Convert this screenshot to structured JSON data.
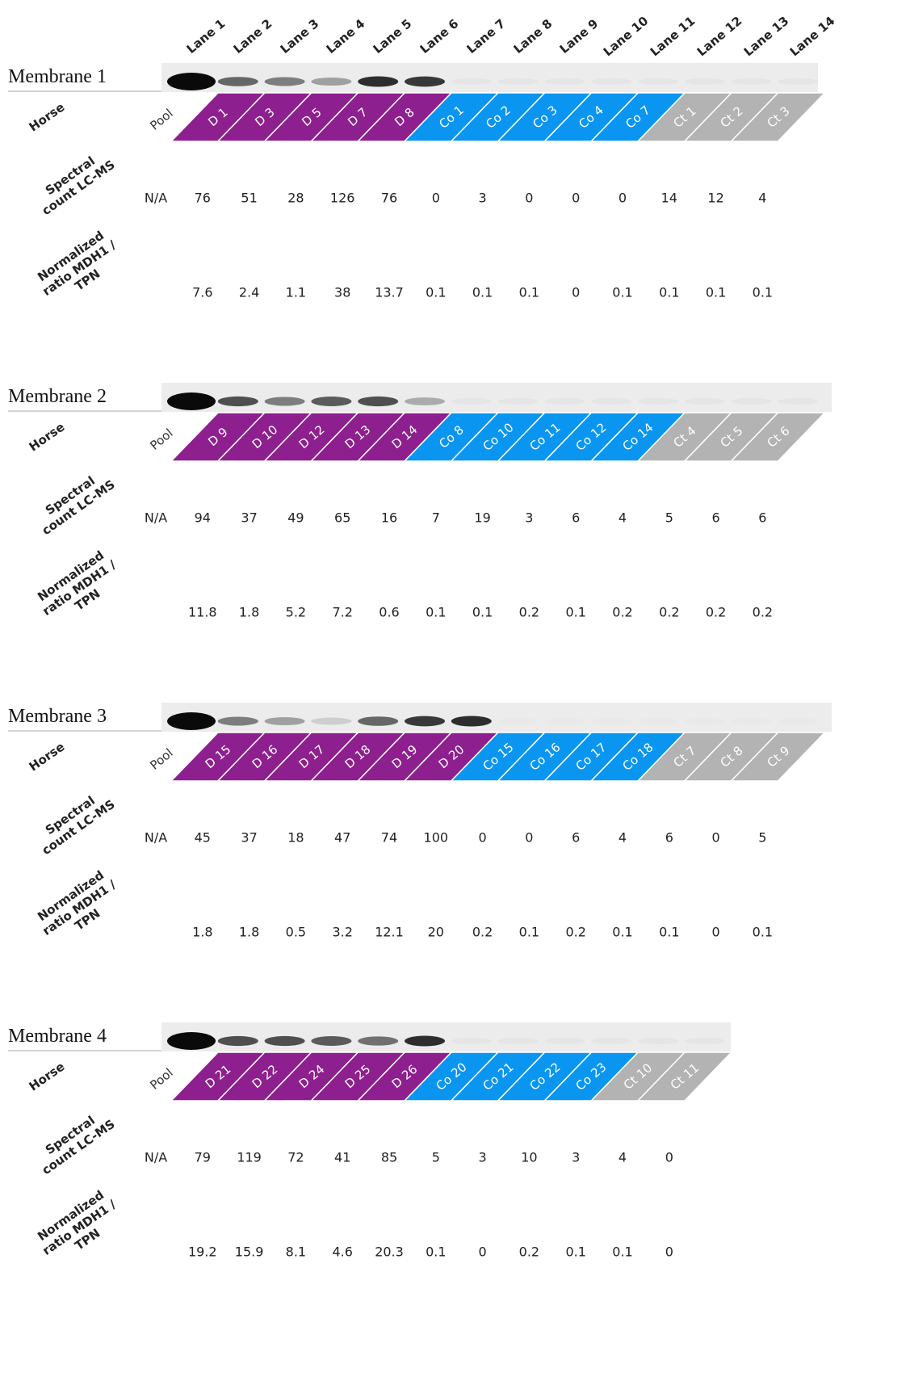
{
  "lanes": [
    "Lane 1",
    "Lane 2",
    "Lane 3",
    "Lane 4",
    "Lane 5",
    "Lane 6",
    "Lane 7",
    "Lane 8",
    "Lane 9",
    "Lane 10",
    "Lane 11",
    "Lane 12",
    "Lane 13",
    "Lane 14"
  ],
  "row_labels": {
    "horse": "Horse",
    "spectral": "Spectral count LC-MS",
    "normalized": "Normalized ratio MDH1 / TPN"
  },
  "membranes": [
    {
      "title": "Membrane 1",
      "horse": [
        "Pool",
        "D 1",
        "D 3",
        "D 5",
        "D 7",
        "D 8",
        "Co 1",
        "Co 2",
        "Co 3",
        "Co 4",
        "Co 7",
        "Ct 1",
        "Ct 2",
        "Ct 3"
      ],
      "horse_colors": [
        "#ffffff",
        "#8e1f8e",
        "#8e1f8e",
        "#8e1f8e",
        "#8e1f8e",
        "#8e1f8e",
        "#0a96f0",
        "#0a96f0",
        "#0a96f0",
        "#0a96f0",
        "#0a96f0",
        "#b3b3b3",
        "#b3b3b3",
        "#b3b3b3"
      ],
      "spectral_count": [
        "N/A",
        76,
        51,
        28,
        126,
        76,
        0,
        3,
        0,
        0,
        0,
        14,
        12,
        4
      ],
      "normalized_ratio": [
        null,
        7.6,
        2.4,
        1.1,
        38,
        13.7,
        0.1,
        0.1,
        0.1,
        0,
        0.1,
        0.1,
        0.1,
        0.1
      ]
    },
    {
      "title": "Membrane 2",
      "horse": [
        "Pool",
        "D 9",
        "D 10",
        "D 12",
        "D 13",
        "D 14",
        "Co 8",
        "Co 10",
        "Co 11",
        "Co 12",
        "Co 14",
        "Ct 4",
        "Ct 5",
        "Ct 6"
      ],
      "horse_colors": [
        "#ffffff",
        "#8e1f8e",
        "#8e1f8e",
        "#8e1f8e",
        "#8e1f8e",
        "#8e1f8e",
        "#0a96f0",
        "#0a96f0",
        "#0a96f0",
        "#0a96f0",
        "#0a96f0",
        "#b3b3b3",
        "#b3b3b3",
        "#b3b3b3"
      ],
      "spectral_count": [
        "N/A",
        94,
        37,
        49,
        65,
        16,
        7,
        19,
        3,
        6,
        4,
        5,
        6,
        6
      ],
      "normalized_ratio": [
        null,
        11.8,
        1.8,
        5.2,
        7.2,
        0.6,
        0.1,
        0.1,
        0.2,
        0.1,
        0.2,
        0.2,
        0.2,
        0.2
      ]
    },
    {
      "title": "Membrane 3",
      "horse": [
        "Pool",
        "D 15",
        "D 16",
        "D 17",
        "D 18",
        "D 19",
        "D 20",
        "Co 15",
        "Co 16",
        "Co 17",
        "Co 18",
        "Ct 7",
        "Ct 8",
        "Ct 9"
      ],
      "horse_colors": [
        "#ffffff",
        "#8e1f8e",
        "#8e1f8e",
        "#8e1f8e",
        "#8e1f8e",
        "#8e1f8e",
        "#8e1f8e",
        "#0a96f0",
        "#0a96f0",
        "#0a96f0",
        "#0a96f0",
        "#b3b3b3",
        "#b3b3b3",
        "#b3b3b3"
      ],
      "spectral_count": [
        "N/A",
        45,
        37,
        18,
        47,
        74,
        100,
        0,
        0,
        6,
        4,
        6,
        0,
        5
      ],
      "normalized_ratio": [
        null,
        1.8,
        1.8,
        0.5,
        3.2,
        12.1,
        20,
        0.2,
        0.1,
        0.2,
        0.1,
        0.1,
        0,
        0.1
      ]
    },
    {
      "title": "Membrane 4",
      "horse": [
        "Pool",
        "D 21",
        "D 22",
        "D 24",
        "D 25",
        "D 26",
        "Co 20",
        "Co 21",
        "Co 22",
        "Co 23",
        "Ct 10",
        "Ct 11"
      ],
      "horse_colors": [
        "#ffffff",
        "#8e1f8e",
        "#8e1f8e",
        "#8e1f8e",
        "#8e1f8e",
        "#8e1f8e",
        "#0a96f0",
        "#0a96f0",
        "#0a96f0",
        "#0a96f0",
        "#b3b3b3",
        "#b3b3b3"
      ],
      "spectral_count": [
        "N/A",
        79,
        119,
        72,
        41,
        85,
        5,
        3,
        10,
        3,
        4,
        0
      ],
      "normalized_ratio": [
        null,
        19.2,
        15.9,
        8.1,
        4.6,
        20.3,
        0.1,
        0,
        0.2,
        0.1,
        0.1,
        0
      ]
    }
  ]
}
